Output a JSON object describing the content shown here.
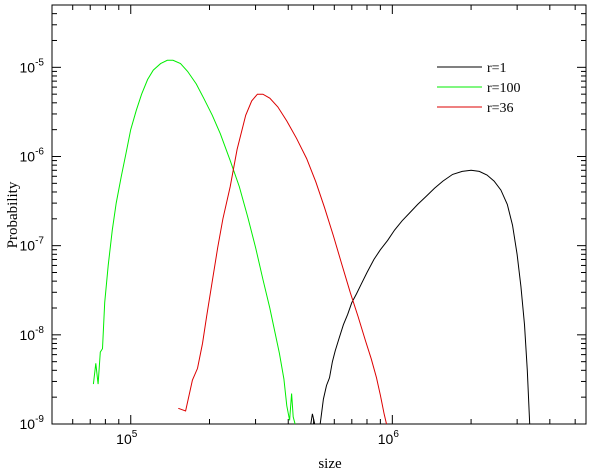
{
  "chart_data": {
    "type": "line",
    "title": "",
    "xlabel": "size",
    "ylabel": "Probability",
    "xscale": "log",
    "yscale": "log",
    "xlim": [
      50000,
      5500000
    ],
    "ylim": [
      1e-09,
      5e-05
    ],
    "grid": false,
    "legend_position": "top-right",
    "x_ticks": [
      {
        "value": 100000,
        "base": "10",
        "exp": "5"
      },
      {
        "value": 1000000,
        "base": "10",
        "exp": "6"
      }
    ],
    "y_ticks": [
      {
        "value": 1e-05,
        "base": "10",
        "exp": "-5"
      },
      {
        "value": 1e-06,
        "base": "10",
        "exp": "-6"
      },
      {
        "value": 1e-07,
        "base": "10",
        "exp": "-7"
      },
      {
        "value": 1e-08,
        "base": "10",
        "exp": "-8"
      },
      {
        "value": 1e-09,
        "base": "10",
        "exp": "-9"
      }
    ],
    "series": [
      {
        "name": "r=1",
        "color": "#000000",
        "points": [
          [
            488000,
            1e-09
          ],
          [
            495000,
            1.3e-09
          ],
          [
            505000,
            1e-09
          ],
          [
            530000,
            1e-09
          ],
          [
            545000,
            1.9e-09
          ],
          [
            560000,
            2.7e-09
          ],
          [
            575000,
            3.3e-09
          ],
          [
            590000,
            5e-09
          ],
          [
            605000,
            6.6e-09
          ],
          [
            625000,
            9e-09
          ],
          [
            650000,
            1.3e-08
          ],
          [
            675000,
            1.7e-08
          ],
          [
            700000,
            2.3e-08
          ],
          [
            730000,
            2.9e-08
          ],
          [
            760000,
            3.7e-08
          ],
          [
            800000,
            5e-08
          ],
          [
            850000,
            7e-08
          ],
          [
            900000,
            9e-08
          ],
          [
            960000,
            1.15e-07
          ],
          [
            1020000,
            1.5e-07
          ],
          [
            1090000,
            1.9e-07
          ],
          [
            1160000,
            2.3e-07
          ],
          [
            1250000,
            2.9e-07
          ],
          [
            1350000,
            3.6e-07
          ],
          [
            1450000,
            4.4e-07
          ],
          [
            1560000,
            5.3e-07
          ],
          [
            1700000,
            6.3e-07
          ],
          [
            1850000,
            6.8e-07
          ],
          [
            2000000,
            7e-07
          ],
          [
            2150000,
            6.8e-07
          ],
          [
            2300000,
            6.2e-07
          ],
          [
            2450000,
            5.3e-07
          ],
          [
            2600000,
            4.2e-07
          ],
          [
            2750000,
            2.9e-07
          ],
          [
            2880000,
            1.7e-07
          ],
          [
            3000000,
            8e-08
          ],
          [
            3100000,
            3.5e-08
          ],
          [
            3200000,
            1.3e-08
          ],
          [
            3280000,
            4e-09
          ],
          [
            3350000,
            1e-09
          ]
        ]
      },
      {
        "name": "r=100",
        "color": "#00ee00",
        "points": [
          [
            72000,
            2.8e-09
          ],
          [
            73500,
            4.8e-09
          ],
          [
            75000,
            2.8e-09
          ],
          [
            76500,
            6.4e-09
          ],
          [
            78000,
            7e-09
          ],
          [
            79500,
            2.3e-08
          ],
          [
            82000,
            6e-08
          ],
          [
            85000,
            1.5e-07
          ],
          [
            88000,
            3e-07
          ],
          [
            92000,
            6e-07
          ],
          [
            96000,
            1.1e-06
          ],
          [
            100000,
            2e-06
          ],
          [
            105000,
            3.3e-06
          ],
          [
            110000,
            5e-06
          ],
          [
            116000,
            7.3e-06
          ],
          [
            122000,
            9.3e-06
          ],
          [
            130000,
            1.1e-05
          ],
          [
            138000,
            1.2e-05
          ],
          [
            145000,
            1.2e-05
          ],
          [
            155000,
            1.1e-05
          ],
          [
            165000,
            9e-06
          ],
          [
            178000,
            6.5e-06
          ],
          [
            190000,
            4.5e-06
          ],
          [
            205000,
            2.9e-06
          ],
          [
            220000,
            1.8e-06
          ],
          [
            240000,
            9e-07
          ],
          [
            260000,
            4.6e-07
          ],
          [
            280000,
            2.1e-07
          ],
          [
            300000,
            9.5e-08
          ],
          [
            320000,
            4.2e-08
          ],
          [
            340000,
            2e-08
          ],
          [
            355000,
            1.1e-08
          ],
          [
            370000,
            6.2e-09
          ],
          [
            385000,
            3.2e-09
          ],
          [
            395000,
            1.6e-09
          ],
          [
            405000,
            1.1e-09
          ],
          [
            412000,
            2.2e-09
          ],
          [
            418000,
            1.2e-09
          ],
          [
            425000,
            1e-09
          ]
        ]
      },
      {
        "name": "r=36",
        "color": "#dd0000",
        "points": [
          [
            152000,
            1.5e-09
          ],
          [
            162000,
            1.4e-09
          ],
          [
            172000,
            3.1e-09
          ],
          [
            180000,
            4.2e-09
          ],
          [
            188000,
            8e-09
          ],
          [
            195000,
            1.6e-08
          ],
          [
            205000,
            4e-08
          ],
          [
            215000,
            9.5e-08
          ],
          [
            225000,
            2e-07
          ],
          [
            240000,
            4.6e-07
          ],
          [
            255000,
            1.2e-06
          ],
          [
            275000,
            2.9e-06
          ],
          [
            290000,
            4.2e-06
          ],
          [
            305000,
            5e-06
          ],
          [
            320000,
            5e-06
          ],
          [
            340000,
            4.5e-06
          ],
          [
            365000,
            3.6e-06
          ],
          [
            395000,
            2.5e-06
          ],
          [
            430000,
            1.6e-06
          ],
          [
            470000,
            9.5e-07
          ],
          [
            510000,
            5.2e-07
          ],
          [
            550000,
            2.7e-07
          ],
          [
            595000,
            1.3e-07
          ],
          [
            640000,
            6.3e-08
          ],
          [
            690000,
            3e-08
          ],
          [
            740000,
            1.6e-08
          ],
          [
            790000,
            8.5e-09
          ],
          [
            830000,
            5.4e-09
          ],
          [
            870000,
            3.3e-09
          ],
          [
            900000,
            2.1e-09
          ],
          [
            930000,
            1.3e-09
          ],
          [
            950000,
            1e-09
          ]
        ]
      }
    ]
  }
}
